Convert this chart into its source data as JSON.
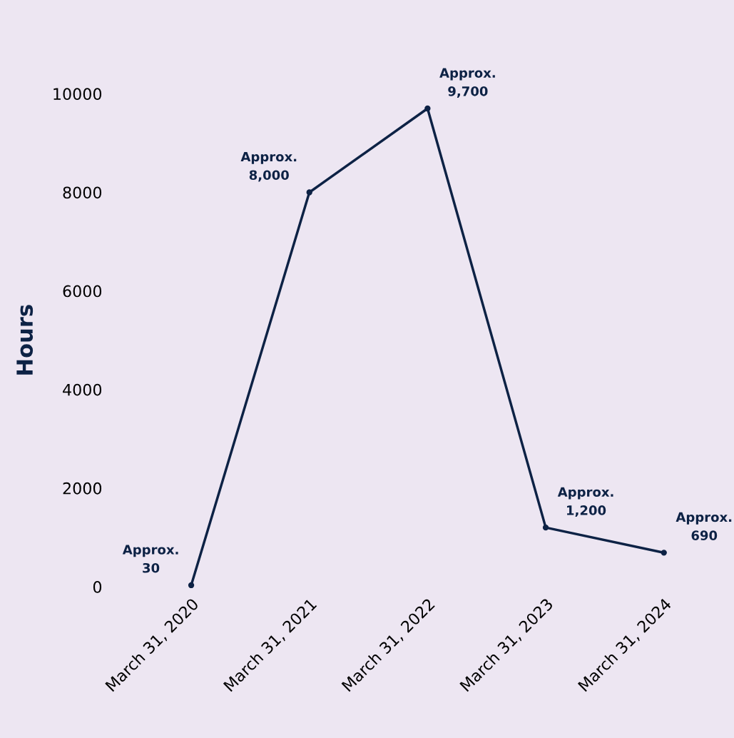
{
  "chart_data": {
    "type": "line",
    "ylabel": "Hours",
    "categories": [
      "March 31, 2020",
      "March 31, 2021",
      "March 31, 2022",
      "March 31, 2023",
      "March 31, 2024"
    ],
    "series": [
      {
        "color": "#0d2245",
        "values": [
          30,
          8000,
          9700,
          1200,
          690
        ],
        "value_labels": [
          "Approx.\n30",
          "Approx.\n8,000",
          "Approx.\n9,700",
          "Approx.\n1,200",
          "Approx.\n690"
        ]
      }
    ],
    "ylim": [
      0,
      10000
    ],
    "yticks": [
      0,
      2000,
      4000,
      6000,
      8000,
      10000
    ],
    "grid": false,
    "marker": "circle",
    "line_style": "solid"
  }
}
